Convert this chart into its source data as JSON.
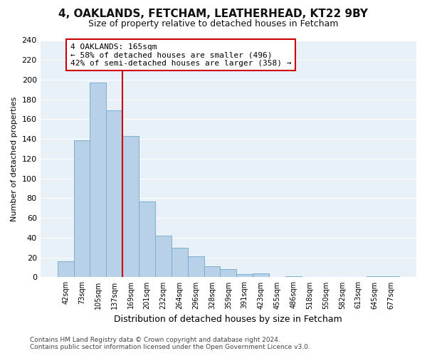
{
  "title": "4, OAKLANDS, FETCHAM, LEATHERHEAD, KT22 9BY",
  "subtitle": "Size of property relative to detached houses in Fetcham",
  "xlabel": "Distribution of detached houses by size in Fetcham",
  "ylabel": "Number of detached properties",
  "bar_labels": [
    "42sqm",
    "73sqm",
    "105sqm",
    "137sqm",
    "169sqm",
    "201sqm",
    "232sqm",
    "264sqm",
    "296sqm",
    "328sqm",
    "359sqm",
    "391sqm",
    "423sqm",
    "455sqm",
    "486sqm",
    "518sqm",
    "550sqm",
    "582sqm",
    "613sqm",
    "645sqm",
    "677sqm"
  ],
  "bar_values": [
    16,
    139,
    197,
    169,
    143,
    77,
    42,
    30,
    21,
    11,
    8,
    3,
    4,
    0,
    1,
    0,
    0,
    0,
    0,
    1,
    1
  ],
  "bar_color": "#b8d0e8",
  "bar_edge_color": "#7aaed0",
  "vline_color": "#cc0000",
  "vline_x": 3.5,
  "annotation_title": "4 OAKLANDS: 165sqm",
  "annotation_line1": "← 58% of detached houses are smaller (496)",
  "annotation_line2": "42% of semi-detached houses are larger (358) →",
  "annotation_box_color": "#ffffff",
  "annotation_box_edge": "#cc0000",
  "ylim": [
    0,
    240
  ],
  "yticks": [
    0,
    20,
    40,
    60,
    80,
    100,
    120,
    140,
    160,
    180,
    200,
    220,
    240
  ],
  "footer_line1": "Contains HM Land Registry data © Crown copyright and database right 2024.",
  "footer_line2": "Contains public sector information licensed under the Open Government Licence v3.0.",
  "bg_color": "#ffffff",
  "plot_bg_color": "#e8f0f8",
  "grid_color": "#ffffff",
  "title_fontsize": 11,
  "subtitle_fontsize": 9,
  "xlabel_fontsize": 9,
  "ylabel_fontsize": 8,
  "tick_fontsize": 8,
  "xtick_fontsize": 7,
  "annotation_fontsize": 8,
  "footer_fontsize": 6.5
}
